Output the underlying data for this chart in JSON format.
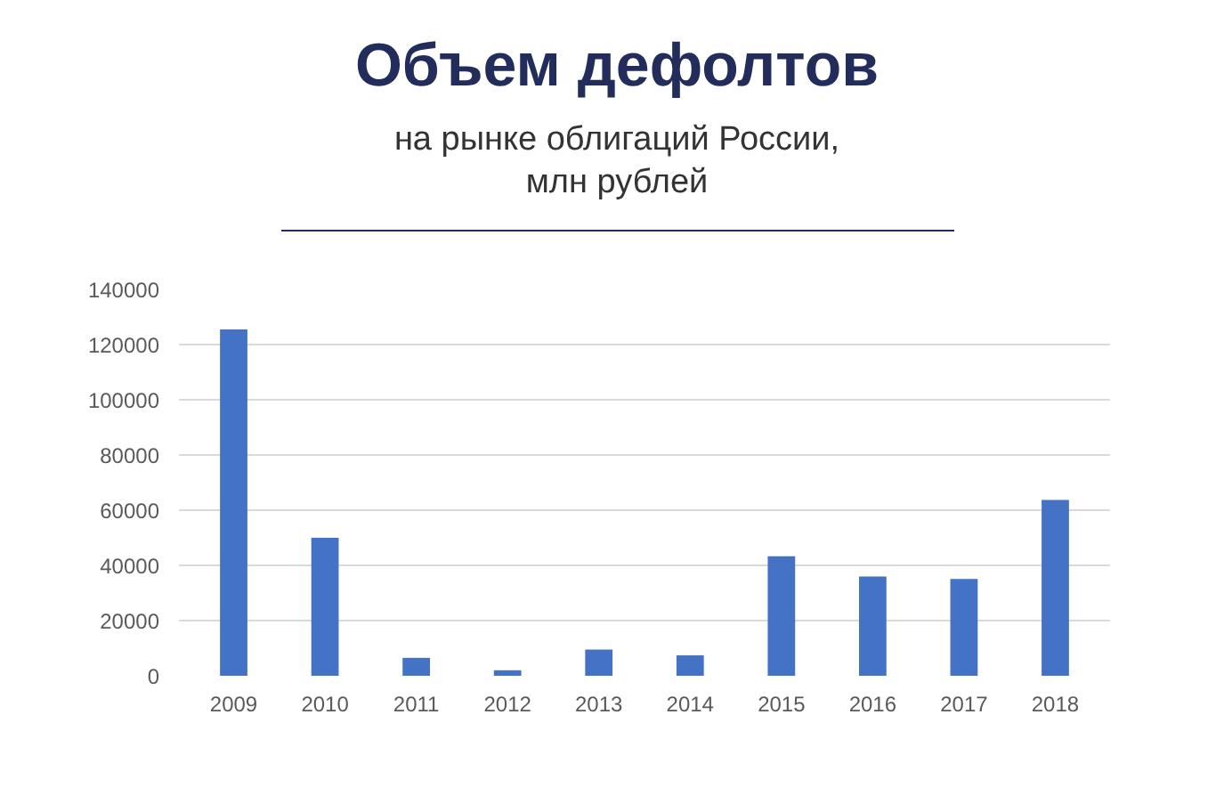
{
  "chart_data": {
    "type": "bar",
    "title": "Объем дефолтов",
    "subtitle": "на рынке облигаций России,\nмлн рублей",
    "categories": [
      "2009",
      "2010",
      "2011",
      "2012",
      "2013",
      "2014",
      "2015",
      "2016",
      "2017",
      "2018"
    ],
    "values": [
      125500,
      50000,
      6500,
      2000,
      9500,
      7400,
      43300,
      36000,
      35100,
      63700
    ],
    "color": "#4472c4",
    "ylim": [
      0,
      140000
    ],
    "yticks": [
      0,
      20000,
      40000,
      60000,
      80000,
      100000,
      120000,
      140000
    ],
    "grid": "y"
  }
}
